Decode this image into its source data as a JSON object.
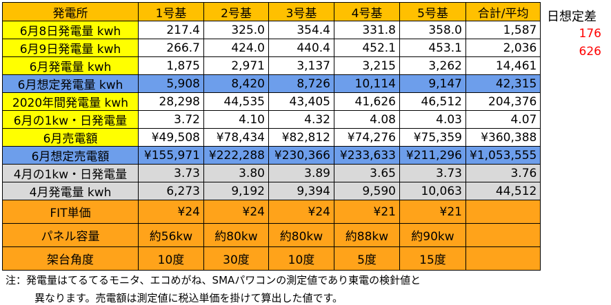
{
  "colors": {
    "header": "#ffc000",
    "label_yellow": "#ffff00",
    "blue": "#6d9eeb",
    "gray": "#d9d9d9",
    "orange": "#ffa31a",
    "white": "#ffffff",
    "diff_red": "#ff0000"
  },
  "header": [
    "発電所",
    "1号基",
    "2号基",
    "3号基",
    "4号基",
    "5号基",
    "合計/平均"
  ],
  "rows": [
    {
      "label": "6月8日発電量 kwh",
      "bg": "label_yellow",
      "cells_bg": "white",
      "cells": [
        "217.4",
        "325.0",
        "354.4",
        "331.8",
        "358.0",
        "1,587"
      ],
      "align": "num"
    },
    {
      "label": "6月9日発電量 kwh",
      "bg": "label_yellow",
      "cells_bg": "white",
      "cells": [
        "266.7",
        "424.0",
        "440.4",
        "452.1",
        "453.1",
        "2,036"
      ],
      "align": "num"
    },
    {
      "label": "6月発電量 kwh",
      "bg": "label_yellow",
      "cells_bg": "white",
      "cells": [
        "1,875",
        "2,971",
        "3,137",
        "3,215",
        "3,262",
        "14,461"
      ],
      "align": "num"
    },
    {
      "label": "6月想定発電量 kwh",
      "bg": "blue",
      "cells_bg": "blue",
      "cells": [
        "5,908",
        "8,420",
        "8,726",
        "10,114",
        "9,147",
        "42,315"
      ],
      "align": "num"
    },
    {
      "label": "2020年間発電量 kwh",
      "bg": "label_yellow",
      "cells_bg": "white",
      "cells": [
        "28,298",
        "44,535",
        "43,405",
        "41,626",
        "46,512",
        "204,376"
      ],
      "align": "num"
    },
    {
      "label": "6月の1kw・日発電量",
      "bg": "label_yellow",
      "cells_bg": "white",
      "cells": [
        "3.72",
        "4.10",
        "4.32",
        "4.08",
        "4.03",
        "4.07"
      ],
      "align": "num"
    },
    {
      "label": "6月売電額",
      "bg": "label_yellow",
      "cells_bg": "white",
      "cells": [
        "¥49,508",
        "¥78,434",
        "¥82,812",
        "¥74,276",
        "¥75,359",
        "¥360,388"
      ],
      "align": "num"
    },
    {
      "label": "6月想定売電額",
      "bg": "blue",
      "cells_bg": "blue",
      "cells": [
        "¥155,971",
        "¥222,288",
        "¥230,366",
        "¥233,633",
        "¥211,296",
        "¥1,053,555"
      ],
      "align": "num"
    },
    {
      "label": "4月の1kw・日発電量",
      "bg": "gray",
      "cells_bg": "gray",
      "cells": [
        "3.73",
        "3.80",
        "3.89",
        "3.65",
        "3.73",
        "3.76"
      ],
      "align": "num"
    },
    {
      "label": "4月発電量 kwh",
      "bg": "gray",
      "cells_bg": "gray",
      "cells": [
        "6,273",
        "9,192",
        "9,394",
        "9,590",
        "10,063",
        "44,512"
      ],
      "align": "num"
    },
    {
      "label": "FIT単価",
      "bg": "orange",
      "cells_bg": "orange",
      "cells": [
        "¥24",
        "¥24",
        "¥24",
        "¥21",
        "¥21",
        ""
      ],
      "align": "num",
      "tall": true
    },
    {
      "label": "パネル容量",
      "bg": "orange",
      "cells_bg": "orange",
      "cells": [
        "約56kw",
        "約80kw",
        "約80kw",
        "約88kw",
        "約90kw",
        ""
      ],
      "align": "ctr",
      "tall": true
    },
    {
      "label": "架台角度",
      "bg": "orange",
      "cells_bg": "orange",
      "cells": [
        "10度",
        "30度",
        "10度",
        "5度",
        "15度",
        ""
      ],
      "align": "ctr",
      "tall": true
    }
  ],
  "side": {
    "title": "日想定差",
    "values": [
      "176",
      "626"
    ]
  },
  "notes": [
    "注：発電量はてるてるモニタ、エコめがね、SMAパワコンの測定値であり東電の検針値と",
    "異なります。売電額は測定値に税込単価を掛けて算出した値です。"
  ]
}
